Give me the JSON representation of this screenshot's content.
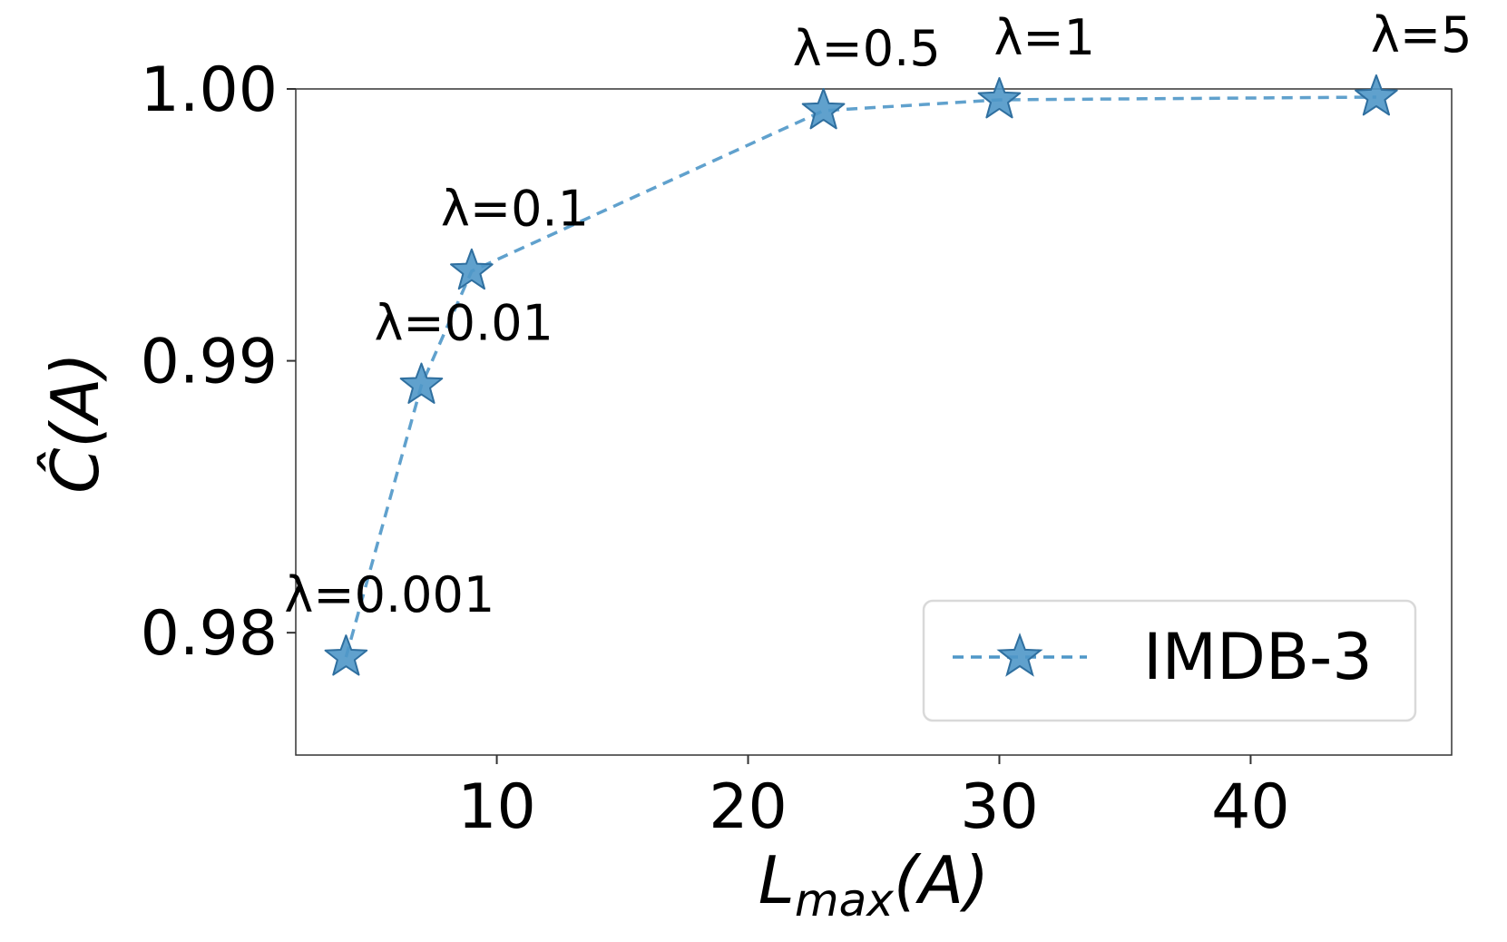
{
  "chart_data": {
    "type": "line",
    "title": "",
    "xlabel": "L_max(A)",
    "xlabel_main": "L",
    "xlabel_sub": "max",
    "xlabel_tail": "(A)",
    "ylabel": "Ĉ(A)",
    "xlim": [
      2,
      48
    ],
    "ylim": [
      0.9755,
      1.0
    ],
    "x_ticks": [
      10,
      20,
      30,
      40
    ],
    "x_tick_labels": [
      "10",
      "20",
      "30",
      "40"
    ],
    "y_ticks": [
      0.98,
      0.99,
      1.0
    ],
    "y_tick_labels": [
      "0.98",
      "0.99",
      "1.00"
    ],
    "grid": false,
    "legend_position": "lower-right",
    "series": [
      {
        "name": "IMDB-3",
        "color": "#4f97c8",
        "marker": "star",
        "line_style": "dashed",
        "x": [
          4,
          7,
          9,
          23,
          30,
          45
        ],
        "y": [
          0.9791,
          0.9891,
          0.9933,
          0.9992,
          0.9996,
          0.9997
        ],
        "labels": [
          "λ=0.001",
          "λ=0.01",
          "λ=0.1",
          "λ=0.5",
          "λ=1",
          "λ=5"
        ]
      }
    ]
  }
}
